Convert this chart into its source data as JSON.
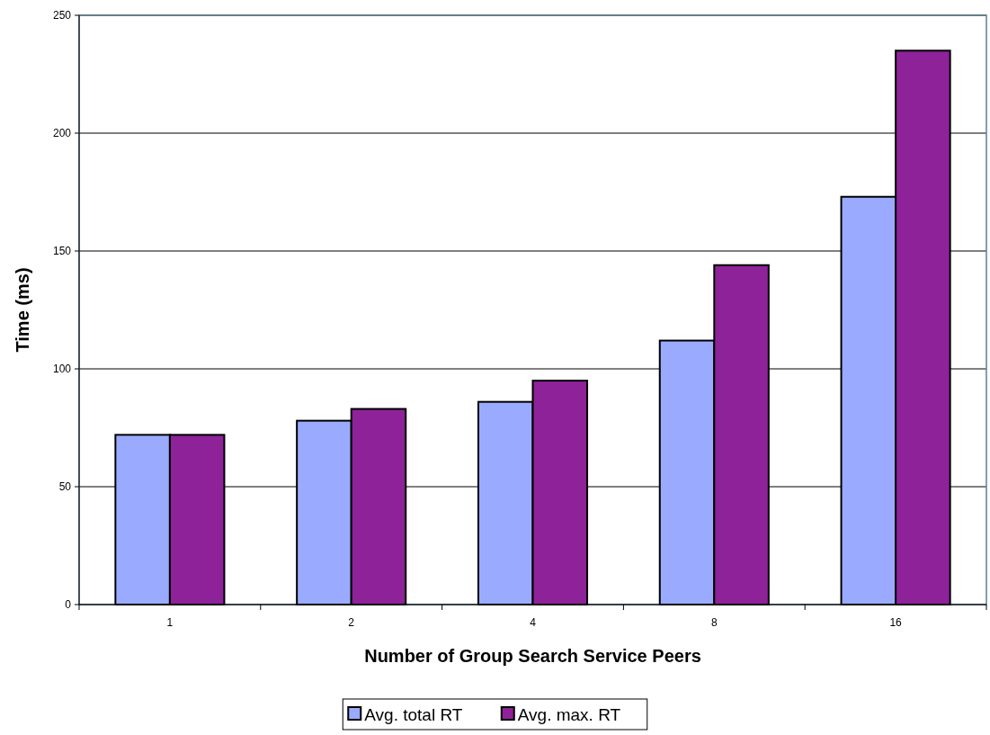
{
  "chart_data": {
    "type": "bar",
    "xlabel": "Number of Group Search Service Peers",
    "ylabel": "Time (ms)",
    "categories": [
      "1",
      "2",
      "4",
      "8",
      "16"
    ],
    "series": [
      {
        "name": "Avg. total RT",
        "color": "#9aabff",
        "values": [
          72,
          78,
          86,
          112,
          173
        ]
      },
      {
        "name": "Avg. max. RT",
        "color": "#8e2299",
        "values": [
          72,
          83,
          95,
          144,
          235
        ]
      }
    ],
    "ylim": [
      0,
      250
    ],
    "yticks": [
      0,
      50,
      100,
      150,
      200,
      250
    ],
    "grid": "y",
    "legend": "bottom"
  }
}
